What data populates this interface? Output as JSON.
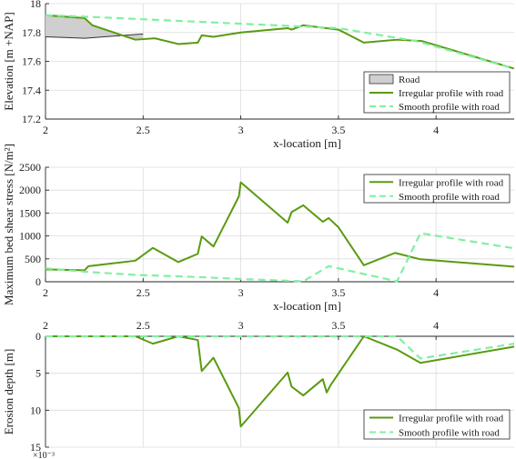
{
  "colors": {
    "irregular": "#5a9a10",
    "smooth": "#80f0a0",
    "road_fill": "#cfcfcf",
    "grid": "#dcdcdc",
    "axis": "#262626"
  },
  "chart_data": [
    {
      "type": "line",
      "ylabel": "Elevation [m +NAP]",
      "xlabel": "x-location [m]",
      "xlim": [
        2,
        4.4
      ],
      "ylim": [
        17.2,
        18.0
      ],
      "xticks": [
        "2",
        "2.5",
        "3",
        "3.5",
        "4"
      ],
      "yticks": [
        "17.2",
        "17.4",
        "17.6",
        "17.8",
        "18"
      ],
      "grid": true,
      "legend_position": "bottom-right",
      "legend": [
        "Road",
        "Irregular profile with road",
        "Smooth profile with road"
      ],
      "series": [
        {
          "name": "Road",
          "kind": "area",
          "x": [
            2.0,
            2.1,
            2.2,
            2.3,
            2.4,
            2.5
          ],
          "y": [
            17.77,
            17.765,
            17.76,
            17.77,
            17.78,
            17.79
          ]
        },
        {
          "name": "Irregular profile with road",
          "x": [
            2.0,
            2.2,
            2.24,
            2.46,
            2.56,
            2.68,
            2.78,
            2.8,
            2.86,
            3.0,
            3.24,
            3.26,
            3.32,
            3.5,
            3.63,
            3.8,
            3.93,
            4.4
          ],
          "y": [
            17.92,
            17.9,
            17.85,
            17.75,
            17.76,
            17.72,
            17.73,
            17.78,
            17.77,
            17.8,
            17.83,
            17.82,
            17.85,
            17.82,
            17.73,
            17.75,
            17.74,
            17.55
          ]
        },
        {
          "name": "Smooth profile with road",
          "x": [
            2.0,
            2.2,
            3.34,
            3.5,
            3.9,
            4.4
          ],
          "y": [
            17.92,
            17.91,
            17.84,
            17.83,
            17.74,
            17.55
          ]
        }
      ]
    },
    {
      "type": "line",
      "ylabel": "Maximum bed shear stress [N/m²]",
      "xlabel": "x-location [m]",
      "xlim": [
        2,
        4.4
      ],
      "ylim": [
        0,
        2500
      ],
      "xticks": [
        "2",
        "2.5",
        "3",
        "3.5",
        "4"
      ],
      "yticks": [
        "0",
        "500",
        "1000",
        "1500",
        "2000",
        "2500"
      ],
      "grid": true,
      "legend_position": "top-right",
      "legend": [
        "Irregular profile with road",
        "Smooth profile with road"
      ],
      "series": [
        {
          "name": "Irregular profile with road",
          "x": [
            2.0,
            2.2,
            2.22,
            2.46,
            2.55,
            2.68,
            2.78,
            2.8,
            2.86,
            2.99,
            3.0,
            3.24,
            3.26,
            3.32,
            3.42,
            3.45,
            3.5,
            3.63,
            3.79,
            3.92,
            4.4
          ],
          "y": [
            270,
            250,
            340,
            460,
            740,
            430,
            610,
            990,
            770,
            1860,
            2170,
            1290,
            1520,
            1670,
            1310,
            1390,
            1190,
            360,
            630,
            490,
            330
          ]
        },
        {
          "name": "Smooth profile with road",
          "x": [
            2.0,
            2.2,
            2.46,
            2.8,
            3.0,
            3.32,
            3.45,
            3.8,
            3.92,
            4.4
          ],
          "y": [
            295,
            220,
            150,
            100,
            60,
            10,
            340,
            10,
            1060,
            730
          ]
        }
      ]
    },
    {
      "type": "line",
      "ylabel": "Erosion depth [m]",
      "xlabel": "",
      "xlim": [
        2,
        4.4
      ],
      "ylim": [
        0,
        0.015
      ],
      "y_reversed": true,
      "x_axis_position": "top",
      "y_exponent_label": "×10⁻³",
      "xticks": [
        "2",
        "2.5",
        "3",
        "3.5",
        "4"
      ],
      "yticks": [
        "0",
        "5",
        "10",
        "15"
      ],
      "grid": true,
      "legend_position": "bottom-right",
      "legend": [
        "Irregular profile with road",
        "Smooth profile with road"
      ],
      "series": [
        {
          "name": "Irregular profile with road",
          "x": [
            2.0,
            2.46,
            2.55,
            2.68,
            2.78,
            2.8,
            2.86,
            2.99,
            3.0,
            3.24,
            3.26,
            3.32,
            3.42,
            3.44,
            3.46,
            3.63,
            3.8,
            3.92,
            4.4
          ],
          "y": [
            0.0,
            0.0,
            0.001,
            0.0,
            0.0005,
            0.0047,
            0.0029,
            0.0097,
            0.0122,
            0.0049,
            0.0068,
            0.008,
            0.0058,
            0.0076,
            0.0066,
            0.0,
            0.0018,
            0.0036,
            0.0014
          ]
        },
        {
          "name": "Smooth profile with road",
          "x": [
            2.0,
            3.6,
            3.8,
            3.92,
            4.4
          ],
          "y": [
            0.0,
            0.0,
            0.0,
            0.003,
            0.001
          ]
        }
      ]
    }
  ]
}
